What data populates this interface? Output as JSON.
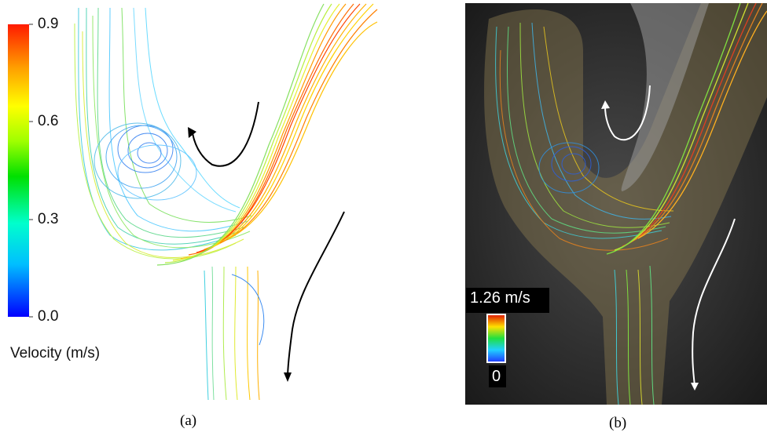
{
  "panel_a": {
    "colorbar": {
      "max_label": "0.9",
      "mid_high_label": "0.6",
      "mid_low_label": "0.3",
      "min_label": "0.0",
      "title": "Velocity (m/s)",
      "gradient": [
        "#0000ff",
        "#00bfff",
        "#00ffbf",
        "#00ff00",
        "#bfff00",
        "#ffff00",
        "#ffbf00",
        "#ff4000",
        "#ff0000"
      ]
    },
    "caption": "(a)"
  },
  "panel_b": {
    "colorbar": {
      "max_label": "1.26 m/s",
      "min_label": "0"
    },
    "caption": "(b)"
  },
  "colors": {
    "arrow_a": "#000000",
    "arrow_b": "#ffffff",
    "background_b": "#1f1f1f"
  }
}
